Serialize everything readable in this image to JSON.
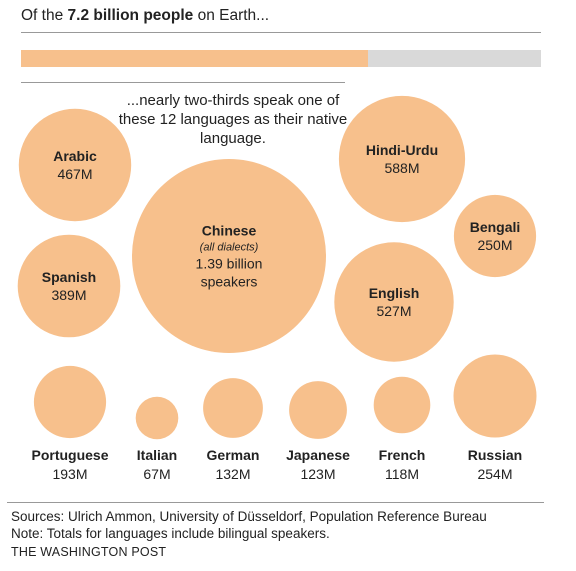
{
  "header": {
    "prefix": "Of the ",
    "bold": "7.2 billion people",
    "suffix": " on Earth..."
  },
  "share_bar": {
    "fraction": 0.6667,
    "fill_color": "#f7c08c",
    "rest_color": "#d9d9d9"
  },
  "note": "...nearly two-thirds speak one of these 12 languages as their native language.",
  "bubble_color": "#f7c08c",
  "chart_data": {
    "type": "bubble",
    "unit": "M",
    "bubbles": [
      {
        "name": "Arabic",
        "label": "467M",
        "value": 467
      },
      {
        "name": "Chinese",
        "sub": "(all dialects)",
        "label": "1.39 billion",
        "label2": "speakers",
        "value": 1390
      },
      {
        "name": "Hindi-Urdu",
        "label": "588M",
        "value": 588
      },
      {
        "name": "Bengali",
        "label": "250M",
        "value": 250
      },
      {
        "name": "Spanish",
        "label": "389M",
        "value": 389
      },
      {
        "name": "English",
        "label": "527M",
        "value": 527
      },
      {
        "name": "Portuguese",
        "label": "193M",
        "value": 193
      },
      {
        "name": "Italian",
        "label": "67M",
        "value": 67
      },
      {
        "name": "German",
        "label": "132M",
        "value": 132
      },
      {
        "name": "Japanese",
        "label": "123M",
        "value": 123
      },
      {
        "name": "French",
        "label": "118M",
        "value": 118
      },
      {
        "name": "Russian",
        "label": "254M",
        "value": 254
      }
    ]
  },
  "footer": {
    "sources": "Sources: Ulrich Ammon, University of Düsseldorf, Population Reference Bureau",
    "note": "Note: Totals for languages include bilingual speakers.",
    "publisher": "THE WASHINGTON POST"
  }
}
